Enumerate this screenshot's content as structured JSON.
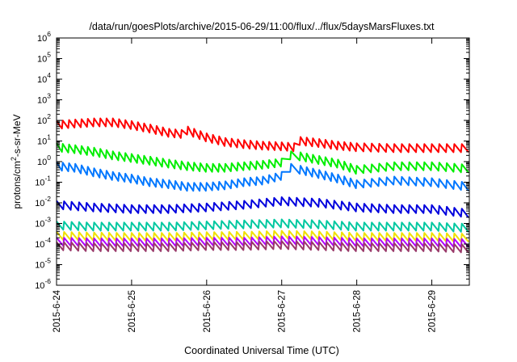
{
  "chart_data": {
    "type": "line",
    "title": "/data/run/goesPlots/archive/2015-06-29/11:00/flux/../flux/5daysMarsFluxes.txt",
    "xlabel": "Coordinated Universal Time (UTC)",
    "ylabel": {
      "base": "protons/cm",
      "exp": "2",
      "rest": "-s-sr-MeV"
    },
    "yscale": "log",
    "ylim": [
      1e-06,
      1000000.0
    ],
    "y_ticks": [
      {
        "value": 1e-06,
        "base": "10",
        "exp": "-6"
      },
      {
        "value": 1e-05,
        "base": "10",
        "exp": "-5"
      },
      {
        "value": 0.0001,
        "base": "10",
        "exp": "-4"
      },
      {
        "value": 0.001,
        "base": "10",
        "exp": "-3"
      },
      {
        "value": 0.01,
        "base": "10",
        "exp": "-2"
      },
      {
        "value": 0.1,
        "base": "10",
        "exp": "-1"
      },
      {
        "value": 1,
        "base": "10",
        "exp": "0"
      },
      {
        "value": 10,
        "base": "10",
        "exp": "1"
      },
      {
        "value": 100,
        "base": "10",
        "exp": "2"
      },
      {
        "value": 1000.0,
        "base": "10",
        "exp": "3"
      },
      {
        "value": 10000.0,
        "base": "10",
        "exp": "4"
      },
      {
        "value": 100000.0,
        "base": "10",
        "exp": "5"
      },
      {
        "value": 1000000.0,
        "base": "10",
        "exp": "6"
      }
    ],
    "xlim": [
      "2015-06-24T00:00",
      "2015-06-29T12:00"
    ],
    "x_ticks": [
      {
        "value": "2015-06-24T00:00",
        "label": "2015-6-24"
      },
      {
        "value": "2015-06-25T00:00",
        "label": "2015-6-25"
      },
      {
        "value": "2015-06-26T00:00",
        "label": "2015-6-26"
      },
      {
        "value": "2015-06-27T00:00",
        "label": "2015-6-27"
      },
      {
        "value": "2015-06-28T00:00",
        "label": "2015-6-28"
      },
      {
        "value": "2015-06-29T00:00",
        "label": "2015-6-29"
      }
    ],
    "grid": false,
    "legend": "none",
    "series": [
      {
        "color": "#ff0000",
        "points": [
          [
            "2015-06-24T00:00",
            60
          ],
          [
            "2015-06-24T06:00",
            70
          ],
          [
            "2015-06-24T12:00",
            80
          ],
          [
            "2015-06-24T18:00",
            80
          ],
          [
            "2015-06-25T00:00",
            60
          ],
          [
            "2015-06-25T06:00",
            40
          ],
          [
            "2015-06-25T12:00",
            25
          ],
          [
            "2015-06-25T16:00",
            22
          ],
          [
            "2015-06-25T18:00",
            32
          ],
          [
            "2015-06-26T00:00",
            15
          ],
          [
            "2015-06-26T06:00",
            9
          ],
          [
            "2015-06-26T12:00",
            7
          ],
          [
            "2015-06-26T18:00",
            6
          ],
          [
            "2015-06-27T00:00",
            5.5
          ],
          [
            "2015-06-27T04:00",
            5
          ],
          [
            "2015-06-27T06:00",
            10
          ],
          [
            "2015-06-27T12:00",
            8
          ],
          [
            "2015-06-27T18:00",
            6
          ],
          [
            "2015-06-28T00:00",
            5
          ],
          [
            "2015-06-28T12:00",
            4.5
          ],
          [
            "2015-06-29T00:00",
            4.5
          ],
          [
            "2015-06-29T12:00",
            4.5
          ]
        ]
      },
      {
        "color": "#00ee00",
        "points": [
          [
            "2015-06-24T00:00",
            5
          ],
          [
            "2015-06-24T06:00",
            4
          ],
          [
            "2015-06-24T12:00",
            3
          ],
          [
            "2015-06-24T18:00",
            2
          ],
          [
            "2015-06-25T00:00",
            1.5
          ],
          [
            "2015-06-25T06:00",
            1.1
          ],
          [
            "2015-06-25T12:00",
            0.8
          ],
          [
            "2015-06-25T18:00",
            0.6
          ],
          [
            "2015-06-26T00:00",
            0.5
          ],
          [
            "2015-06-26T06:00",
            0.5
          ],
          [
            "2015-06-26T12:00",
            0.6
          ],
          [
            "2015-06-26T18:00",
            0.7
          ],
          [
            "2015-06-27T00:00",
            0.9
          ],
          [
            "2015-06-27T03:00",
            2
          ],
          [
            "2015-06-27T06:00",
            1.8
          ],
          [
            "2015-06-27T12:00",
            1.2
          ],
          [
            "2015-06-27T18:00",
            0.8
          ],
          [
            "2015-06-28T00:00",
            0.4
          ],
          [
            "2015-06-28T12:00",
            0.6
          ],
          [
            "2015-06-29T00:00",
            0.6
          ],
          [
            "2015-06-29T12:00",
            0.45
          ]
        ]
      },
      {
        "color": "#0077ff",
        "points": [
          [
            "2015-06-24T00:00",
            0.6
          ],
          [
            "2015-06-24T06:00",
            0.5
          ],
          [
            "2015-06-24T12:00",
            0.3
          ],
          [
            "2015-06-24T18:00",
            0.2
          ],
          [
            "2015-06-25T00:00",
            0.15
          ],
          [
            "2015-06-25T06:00",
            0.1
          ],
          [
            "2015-06-25T12:00",
            0.08
          ],
          [
            "2015-06-25T18:00",
            0.06
          ],
          [
            "2015-06-26T00:00",
            0.06
          ],
          [
            "2015-06-26T06:00",
            0.07
          ],
          [
            "2015-06-26T12:00",
            0.1
          ],
          [
            "2015-06-26T18:00",
            0.12
          ],
          [
            "2015-06-27T00:00",
            0.2
          ],
          [
            "2015-06-27T03:00",
            0.5
          ],
          [
            "2015-06-27T06:00",
            0.4
          ],
          [
            "2015-06-27T12:00",
            0.25
          ],
          [
            "2015-06-27T18:00",
            0.15
          ],
          [
            "2015-06-28T00:00",
            0.08
          ],
          [
            "2015-06-28T12:00",
            0.12
          ],
          [
            "2015-06-29T00:00",
            0.1
          ],
          [
            "2015-06-29T12:00",
            0.06
          ]
        ]
      },
      {
        "color": "#0000dd",
        "points": [
          [
            "2015-06-24T00:00",
            0.008
          ],
          [
            "2015-06-24T12:00",
            0.006
          ],
          [
            "2015-06-25T00:00",
            0.005
          ],
          [
            "2015-06-25T12:00",
            0.005
          ],
          [
            "2015-06-26T00:00",
            0.006
          ],
          [
            "2015-06-26T12:00",
            0.008
          ],
          [
            "2015-06-27T00:00",
            0.012
          ],
          [
            "2015-06-27T12:00",
            0.01
          ],
          [
            "2015-06-28T00:00",
            0.006
          ],
          [
            "2015-06-28T12:00",
            0.005
          ],
          [
            "2015-06-29T00:00",
            0.005
          ],
          [
            "2015-06-29T12:00",
            0.003
          ]
        ]
      },
      {
        "color": "#00c8a0",
        "points": [
          [
            "2015-06-24T00:00",
            0.0008
          ],
          [
            "2015-06-24T12:00",
            0.0007
          ],
          [
            "2015-06-25T00:00",
            0.0007
          ],
          [
            "2015-06-25T12:00",
            0.0007
          ],
          [
            "2015-06-26T00:00",
            0.0008
          ],
          [
            "2015-06-26T12:00",
            0.0009
          ],
          [
            "2015-06-27T00:00",
            0.001
          ],
          [
            "2015-06-27T12:00",
            0.0009
          ],
          [
            "2015-06-28T00:00",
            0.0007
          ],
          [
            "2015-06-28T12:00",
            0.0007
          ],
          [
            "2015-06-29T00:00",
            0.0007
          ],
          [
            "2015-06-29T12:00",
            0.0006
          ]
        ]
      },
      {
        "color": "#f0e000",
        "points": [
          [
            "2015-06-24T00:00",
            0.00025
          ],
          [
            "2015-06-24T12:00",
            0.00023
          ],
          [
            "2015-06-25T00:00",
            0.00022
          ],
          [
            "2015-06-25T12:00",
            0.00022
          ],
          [
            "2015-06-26T00:00",
            0.00024
          ],
          [
            "2015-06-26T12:00",
            0.00025
          ],
          [
            "2015-06-27T00:00",
            0.00028
          ],
          [
            "2015-06-27T12:00",
            0.00026
          ],
          [
            "2015-06-28T00:00",
            0.00022
          ],
          [
            "2015-06-28T12:00",
            0.00022
          ],
          [
            "2015-06-29T00:00",
            0.00022
          ],
          [
            "2015-06-29T12:00",
            0.0002
          ]
        ]
      },
      {
        "color": "#b000ff",
        "points": [
          [
            "2015-06-24T00:00",
            0.00013
          ],
          [
            "2015-06-24T12:00",
            0.00012
          ],
          [
            "2015-06-25T00:00",
            0.00012
          ],
          [
            "2015-06-25T12:00",
            0.00012
          ],
          [
            "2015-06-26T00:00",
            0.00013
          ],
          [
            "2015-06-26T12:00",
            0.00013
          ],
          [
            "2015-06-27T00:00",
            0.00015
          ],
          [
            "2015-06-27T12:00",
            0.00014
          ],
          [
            "2015-06-28T00:00",
            0.00012
          ],
          [
            "2015-06-28T12:00",
            0.00012
          ],
          [
            "2015-06-29T00:00",
            0.00012
          ],
          [
            "2015-06-29T12:00",
            0.00011
          ]
        ]
      },
      {
        "color": "#9a3a6a",
        "points": [
          [
            "2015-06-24T00:00",
            8e-05
          ],
          [
            "2015-06-24T12:00",
            7e-05
          ],
          [
            "2015-06-25T00:00",
            7e-05
          ],
          [
            "2015-06-25T12:00",
            7e-05
          ],
          [
            "2015-06-26T00:00",
            8e-05
          ],
          [
            "2015-06-26T12:00",
            8e-05
          ],
          [
            "2015-06-27T00:00",
            9e-05
          ],
          [
            "2015-06-27T12:00",
            8e-05
          ],
          [
            "2015-06-28T00:00",
            7e-05
          ],
          [
            "2015-06-28T12:00",
            7e-05
          ],
          [
            "2015-06-29T00:00",
            7e-05
          ],
          [
            "2015-06-29T12:00",
            6e-05
          ]
        ]
      }
    ]
  }
}
